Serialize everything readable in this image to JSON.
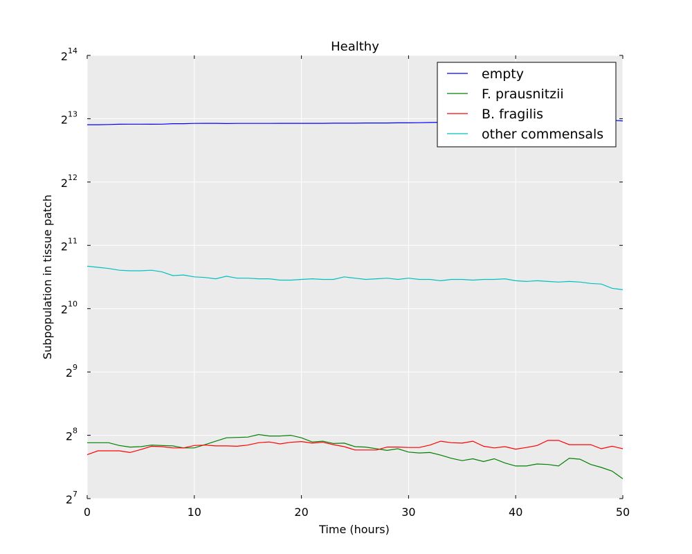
{
  "chart_data": {
    "type": "line",
    "title": "Healthy",
    "xlabel": "Time (hours)",
    "ylabel": "Subpopulation in tissue patch",
    "yscale": "log2",
    "xlim": [
      0,
      50
    ],
    "ylim": [
      128,
      16384
    ],
    "grid": true,
    "legend_position": "top-right",
    "x_ticks": [
      "0",
      "10",
      "20",
      "30",
      "40",
      "50"
    ],
    "y_ticks": [
      {
        "base": "2",
        "exp": "7",
        "value": 128
      },
      {
        "base": "2",
        "exp": "8",
        "value": 256
      },
      {
        "base": "2",
        "exp": "9",
        "value": 512
      },
      {
        "base": "2",
        "exp": "10",
        "value": 1024
      },
      {
        "base": "2",
        "exp": "11",
        "value": 2048
      },
      {
        "base": "2",
        "exp": "12",
        "value": 4096
      },
      {
        "base": "2",
        "exp": "13",
        "value": 8192
      },
      {
        "base": "2",
        "exp": "14",
        "value": 16384
      }
    ],
    "x": [
      0,
      1,
      2,
      3,
      4,
      5,
      6,
      7,
      8,
      9,
      10,
      11,
      12,
      13,
      14,
      15,
      16,
      17,
      18,
      19,
      20,
      21,
      22,
      23,
      24,
      25,
      26,
      27,
      28,
      29,
      30,
      31,
      32,
      33,
      34,
      35,
      36,
      37,
      38,
      39,
      40,
      41,
      42,
      43,
      44,
      45,
      46,
      47,
      48,
      49,
      50
    ],
    "series": [
      {
        "name": "empty",
        "color": "#0000ff",
        "values": [
          7670,
          7670,
          7690,
          7710,
          7720,
          7720,
          7710,
          7720,
          7760,
          7760,
          7780,
          7790,
          7790,
          7770,
          7780,
          7780,
          7780,
          7780,
          7790,
          7790,
          7790,
          7790,
          7790,
          7800,
          7800,
          7800,
          7820,
          7820,
          7820,
          7830,
          7830,
          7840,
          7860,
          7880,
          7880,
          7900,
          7900,
          7910,
          7920,
          7920,
          7930,
          7940,
          7950,
          7960,
          7960,
          7970,
          7990,
          8000,
          8030,
          8050,
          8000
        ]
      },
      {
        "name": "F. prausnitzii",
        "color": "#008000",
        "values": [
          236,
          236,
          236,
          229,
          225,
          226,
          230,
          229,
          228,
          223,
          223,
          231,
          240,
          249,
          250,
          251,
          258,
          254,
          254,
          256,
          249,
          238,
          240,
          234,
          235,
          226,
          225,
          221,
          217,
          221,
          213,
          211,
          212,
          206,
          199,
          194,
          198,
          192,
          198,
          189,
          183,
          183,
          187,
          186,
          183,
          199,
          197,
          186,
          180,
          173,
          159
        ]
      },
      {
        "name": "B. fragilis",
        "color": "#ff0000",
        "values": [
          207,
          216,
          216,
          216,
          212,
          219,
          227,
          226,
          223,
          223,
          229,
          230,
          228,
          228,
          227,
          230,
          236,
          238,
          233,
          237,
          239,
          235,
          237,
          231,
          226,
          218,
          218,
          218,
          225,
          225,
          224,
          224,
          230,
          240,
          236,
          235,
          240,
          227,
          223,
          226,
          220,
          224,
          229,
          242,
          242,
          231,
          231,
          231,
          221,
          227,
          221
        ]
      },
      {
        "name": "other commensals",
        "color": "#00bfbf",
        "values": [
          1630,
          1610,
          1590,
          1560,
          1550,
          1550,
          1560,
          1530,
          1470,
          1480,
          1450,
          1440,
          1420,
          1460,
          1430,
          1430,
          1420,
          1420,
          1400,
          1400,
          1410,
          1420,
          1410,
          1410,
          1450,
          1430,
          1410,
          1420,
          1430,
          1410,
          1430,
          1410,
          1410,
          1390,
          1410,
          1410,
          1400,
          1410,
          1410,
          1420,
          1390,
          1380,
          1390,
          1380,
          1370,
          1380,
          1370,
          1350,
          1340,
          1280,
          1260
        ]
      }
    ]
  }
}
